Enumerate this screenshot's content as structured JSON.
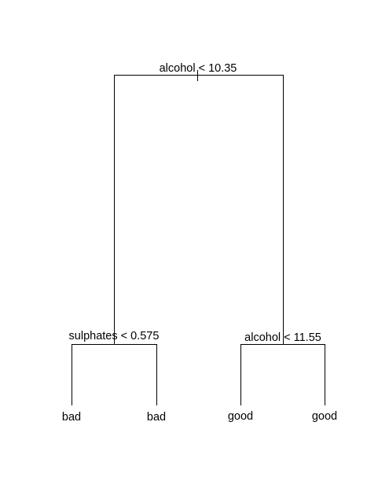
{
  "tree": {
    "root": {
      "split": "alcohol < 10.35",
      "left": {
        "split": "sulphates < 0.575",
        "left": {
          "leaf": "bad"
        },
        "right": {
          "leaf": "bad"
        }
      },
      "right": {
        "split": "alcohol < 11.55",
        "left": {
          "leaf": "good"
        },
        "right": {
          "leaf": "good"
        }
      }
    }
  },
  "colors": {
    "line": "#000000",
    "text": "#000000",
    "background": "#ffffff"
  }
}
